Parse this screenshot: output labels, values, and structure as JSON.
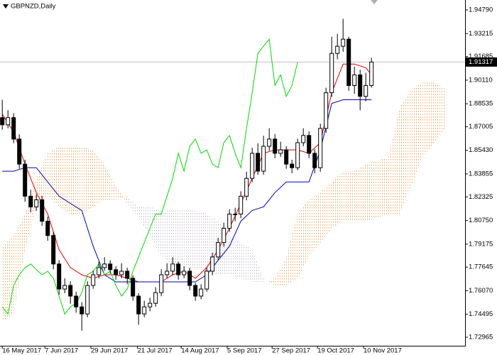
{
  "chart_data": {
    "type": "candlestick",
    "title": "GBPNZD,Daily",
    "up_color": "#ffffff",
    "down_color": "#000000",
    "candle_outline": "#000000",
    "open": [
      1.8761,
      1.8713,
      1.8761,
      1.8618,
      1.8451,
      1.8237,
      1.8166,
      1.8213,
      1.807,
      1.7975,
      1.7785,
      1.7618,
      1.7642,
      1.7571,
      1.7499,
      1.7452,
      1.7642,
      1.7713,
      1.7761,
      1.7785,
      1.7747,
      1.7713,
      1.7737,
      1.769,
      1.7571,
      1.7452,
      1.7499,
      1.7523,
      1.7594,
      1.7713,
      1.7737,
      1.7785,
      1.7713,
      1.7737,
      1.7642,
      1.7571,
      1.7618,
      1.7737,
      1.7832,
      1.7928,
      1.8023,
      1.8118,
      1.8118,
      1.8237,
      1.8356,
      1.8523,
      1.8404,
      1.857,
      1.8618,
      1.8523,
      1.8546,
      1.8451,
      1.8427,
      1.8594,
      1.8642,
      1.8523,
      1.8427,
      1.8689,
      1.8927,
      1.9189,
      1.9237,
      1.9284,
      1.8975,
      1.9046,
      1.8903,
      1.8975
    ],
    "high": [
      1.888,
      1.881,
      1.879,
      1.865,
      1.848,
      1.828,
      1.825,
      1.824,
      1.81,
      1.8,
      1.781,
      1.769,
      1.767,
      1.76,
      1.753,
      1.767,
      1.774,
      1.78,
      1.783,
      1.781,
      1.777,
      1.779,
      1.776,
      1.771,
      1.759,
      1.754,
      1.756,
      1.763,
      1.775,
      1.779,
      1.783,
      1.78,
      1.777,
      1.776,
      1.766,
      1.765,
      1.776,
      1.786,
      1.796,
      1.806,
      1.815,
      1.816,
      1.827,
      1.84,
      1.856,
      1.859,
      1.864,
      1.869,
      1.865,
      1.86,
      1.857,
      1.848,
      1.862,
      1.869,
      1.867,
      1.855,
      1.872,
      1.896,
      1.93,
      1.932,
      1.942,
      1.93,
      1.91,
      1.908,
      1.906,
      1.916
    ],
    "low": [
      1.868,
      1.869,
      1.859,
      1.842,
      1.82,
      1.813,
      1.814,
      1.804,
      1.794,
      1.775,
      1.758,
      1.759,
      1.752,
      1.746,
      1.734,
      1.743,
      1.762,
      1.769,
      1.774,
      1.772,
      1.768,
      1.769,
      1.765,
      1.754,
      1.738,
      1.743,
      1.747,
      1.75,
      1.757,
      1.769,
      1.771,
      1.768,
      1.769,
      1.761,
      1.754,
      1.755,
      1.76,
      1.771,
      1.781,
      1.79,
      1.8,
      1.807,
      1.809,
      1.821,
      1.833,
      1.838,
      1.838,
      1.854,
      1.849,
      1.85,
      1.842,
      1.839,
      1.841,
      1.857,
      1.849,
      1.839,
      1.84,
      1.866,
      1.89,
      1.915,
      1.92,
      1.894,
      1.892,
      1.881,
      1.887,
      1.896
    ],
    "close": [
      1.8713,
      1.8761,
      1.8618,
      1.8451,
      1.8237,
      1.8166,
      1.8213,
      1.807,
      1.7975,
      1.7785,
      1.7618,
      1.7642,
      1.7571,
      1.7499,
      1.7452,
      1.7642,
      1.7713,
      1.7761,
      1.7785,
      1.7747,
      1.7713,
      1.7737,
      1.769,
      1.7571,
      1.7452,
      1.7499,
      1.7523,
      1.7594,
      1.7713,
      1.7737,
      1.7785,
      1.7713,
      1.7737,
      1.7642,
      1.7571,
      1.7618,
      1.7737,
      1.7832,
      1.7928,
      1.8023,
      1.8118,
      1.8118,
      1.8237,
      1.8356,
      1.8523,
      1.8404,
      1.857,
      1.8618,
      1.8523,
      1.8546,
      1.8451,
      1.8427,
      1.8594,
      1.8642,
      1.8523,
      1.8427,
      1.8689,
      1.8927,
      1.9189,
      1.9237,
      1.9284,
      1.8975,
      1.9046,
      1.8903,
      1.8975,
      1.91317
    ],
    "current_price": 1.91317,
    "current_price_color": "#c0c0c0",
    "lines": [
      {
        "color": "#e00000",
        "x": [
          0,
          2,
          4,
          6,
          8,
          10,
          12,
          14,
          16,
          18,
          20,
          22,
          24,
          26,
          28,
          30,
          32,
          34,
          36,
          38,
          40,
          42,
          44,
          46,
          48,
          50,
          52,
          54,
          56,
          58,
          60,
          62,
          64,
          65
        ],
        "values": [
          1.8784,
          1.8665,
          1.8451,
          1.8261,
          1.8118,
          1.788,
          1.7761,
          1.7713,
          1.769,
          1.7713,
          1.7713,
          1.769,
          1.7666,
          1.7666,
          1.7666,
          1.7713,
          1.7737,
          1.769,
          1.7761,
          1.788,
          1.8023,
          1.8189,
          1.8356,
          1.8523,
          1.8546,
          1.8546,
          1.8546,
          1.8523,
          1.8594,
          1.8927,
          1.9118,
          1.9118,
          1.9094,
          1.9046
        ]
      },
      {
        "color": "#0000b0",
        "x": [
          0,
          2,
          4,
          6,
          8,
          10,
          12,
          14,
          16,
          18,
          20,
          22,
          24,
          26,
          28,
          30,
          32,
          34,
          36,
          38,
          40,
          42,
          44,
          46,
          48,
          50,
          52,
          54,
          56,
          58,
          60,
          62,
          64,
          65
        ],
        "values": [
          1.8404,
          1.8404,
          1.8427,
          1.8427,
          1.8332,
          1.8237,
          1.8189,
          1.8142,
          1.7904,
          1.7713,
          1.7666,
          1.7666,
          1.7666,
          1.7666,
          1.7666,
          1.7666,
          1.7666,
          1.7666,
          1.7713,
          1.7809,
          1.7904,
          1.807,
          1.8142,
          1.8166,
          1.8261,
          1.8332,
          1.8332,
          1.8332,
          1.8546,
          1.8856,
          1.888,
          1.888,
          1.888,
          1.888
        ]
      },
      {
        "color": "#00dd00",
        "x": [
          0,
          1,
          2,
          3,
          4,
          5,
          6,
          7,
          8,
          9,
          10,
          11,
          12,
          13,
          14,
          15,
          16,
          17,
          18,
          19,
          20,
          21,
          22,
          23,
          24,
          25,
          26,
          27,
          28,
          29,
          30,
          31,
          32,
          33,
          34,
          35,
          36,
          37,
          38,
          39,
          40,
          41,
          42,
          43,
          44,
          45,
          46,
          47,
          48,
          49,
          50,
          51,
          52
        ],
        "values": [
          1.7499,
          1.7452,
          1.7642,
          1.7713,
          1.7761,
          1.7785,
          1.7747,
          1.7713,
          1.7737,
          1.769,
          1.7571,
          1.7452,
          1.7499,
          1.7523,
          1.7594,
          1.7713,
          1.7737,
          1.7785,
          1.7713,
          1.7737,
          1.7642,
          1.7571,
          1.7618,
          1.7737,
          1.7832,
          1.7928,
          1.8023,
          1.8118,
          1.8118,
          1.8237,
          1.8356,
          1.8523,
          1.8404,
          1.857,
          1.8618,
          1.8523,
          1.8546,
          1.8451,
          1.8427,
          1.8594,
          1.8642,
          1.8523,
          1.8427,
          1.8689,
          1.8927,
          1.9189,
          1.9237,
          1.9284,
          1.8975,
          1.9046,
          1.8903,
          1.8975,
          1.91317
        ]
      }
    ],
    "cloud": {
      "up_color": "#f4a460",
      "down_color": "#c4bcc8",
      "x": [
        0,
        2,
        4,
        6,
        8,
        10,
        12,
        14,
        16,
        18,
        20,
        22,
        24,
        26,
        28,
        30,
        32,
        34,
        36,
        38,
        40,
        42,
        44,
        46,
        48,
        50,
        52,
        54,
        56,
        58,
        60,
        62,
        64,
        66,
        68,
        70,
        72,
        74,
        76,
        78
      ],
      "span_a": [
        1.7904,
        1.7975,
        1.8118,
        1.8356,
        1.8523,
        1.857,
        1.857,
        1.857,
        1.8546,
        1.8451,
        1.8308,
        1.8189,
        1.8094,
        1.7975,
        1.7832,
        1.7785,
        1.7761,
        1.7761,
        1.7737,
        1.7713,
        1.7713,
        1.769,
        1.7666,
        1.7666,
        1.769,
        1.7832,
        1.8118,
        1.8213,
        1.8261,
        1.8332,
        1.8404,
        1.8404,
        1.8451,
        1.8475,
        1.8499,
        1.8832,
        1.8951,
        1.8999,
        1.8999,
        1.8951
      ],
      "span_b": [
        1.7404,
        1.7452,
        1.788,
        1.8166,
        1.8237,
        1.8166,
        1.8118,
        1.8118,
        1.8166,
        1.8213,
        1.8213,
        1.8237,
        1.8166,
        1.8166,
        1.8142,
        1.8142,
        1.8142,
        1.8142,
        1.8118,
        1.807,
        1.7975,
        1.7928,
        1.788,
        1.769,
        1.7642,
        1.7642,
        1.769,
        1.7832,
        1.7928,
        1.8023,
        1.807,
        1.807,
        1.807,
        1.8094,
        1.8118,
        1.8118,
        1.8308,
        1.8499,
        1.8594,
        1.8689
      ]
    },
    "xlim": [
      -0.4,
      81.475
    ],
    "xticks": [
      {
        "value": 0,
        "label": "16 May 2017"
      },
      {
        "value": 7.5,
        "label": "7 Jun 2017"
      },
      {
        "value": 15.6,
        "label": "29 Jun 2017"
      },
      {
        "value": 23.8,
        "label": "21 Jul 2017"
      },
      {
        "value": 31.5,
        "label": "14 Aug 2017"
      },
      {
        "value": 39.6,
        "label": "5 Sep 2017"
      },
      {
        "value": 47.5,
        "label": "27 Sep 2017"
      },
      {
        "value": 55.5,
        "label": "19 Oct 2017"
      },
      {
        "value": 63.6,
        "label": "10 Nov 2017"
      }
    ],
    "ylim": [
      1.72397,
      1.95453
    ],
    "yticks": [
      {
        "value": 1.9479,
        "label": "1.94790"
      },
      1.93215,
      1.91685,
      {
        "value": 1.9011,
        "label": "1.90110"
      },
      1.88535,
      1.87005,
      {
        "value": 1.8543,
        "label": "1.85430"
      },
      1.83855,
      1.82325,
      {
        "value": 1.8075,
        "label": "1.80750"
      },
      1.79175,
      1.77645,
      {
        "value": 1.7607,
        "label": "1.76070"
      },
      1.74495,
      1.72965
    ]
  }
}
